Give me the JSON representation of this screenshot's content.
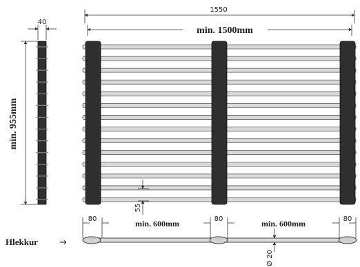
{
  "dimensions": {
    "overall_width": "1550",
    "inner_width": "min. 1500mm",
    "post_thickness": "40",
    "height": "min. 955mm",
    "slat_gap": "55",
    "post_width_left": "80",
    "post_width_mid": "80",
    "post_width_right": "80",
    "span_left": "min. 600mm",
    "span_right": "min. 600mm",
    "bar_diameter": "Ø 20"
  },
  "labels": {
    "rail_label": "Hlekkur",
    "rail_arrow": "→"
  },
  "colors": {
    "post": "#2f2f2f",
    "slat_fill": "#d9d9d9",
    "slat_stroke": "#555555",
    "dim_line": "#333333"
  },
  "structure": {
    "slat_count": 14,
    "post_count": 3
  }
}
